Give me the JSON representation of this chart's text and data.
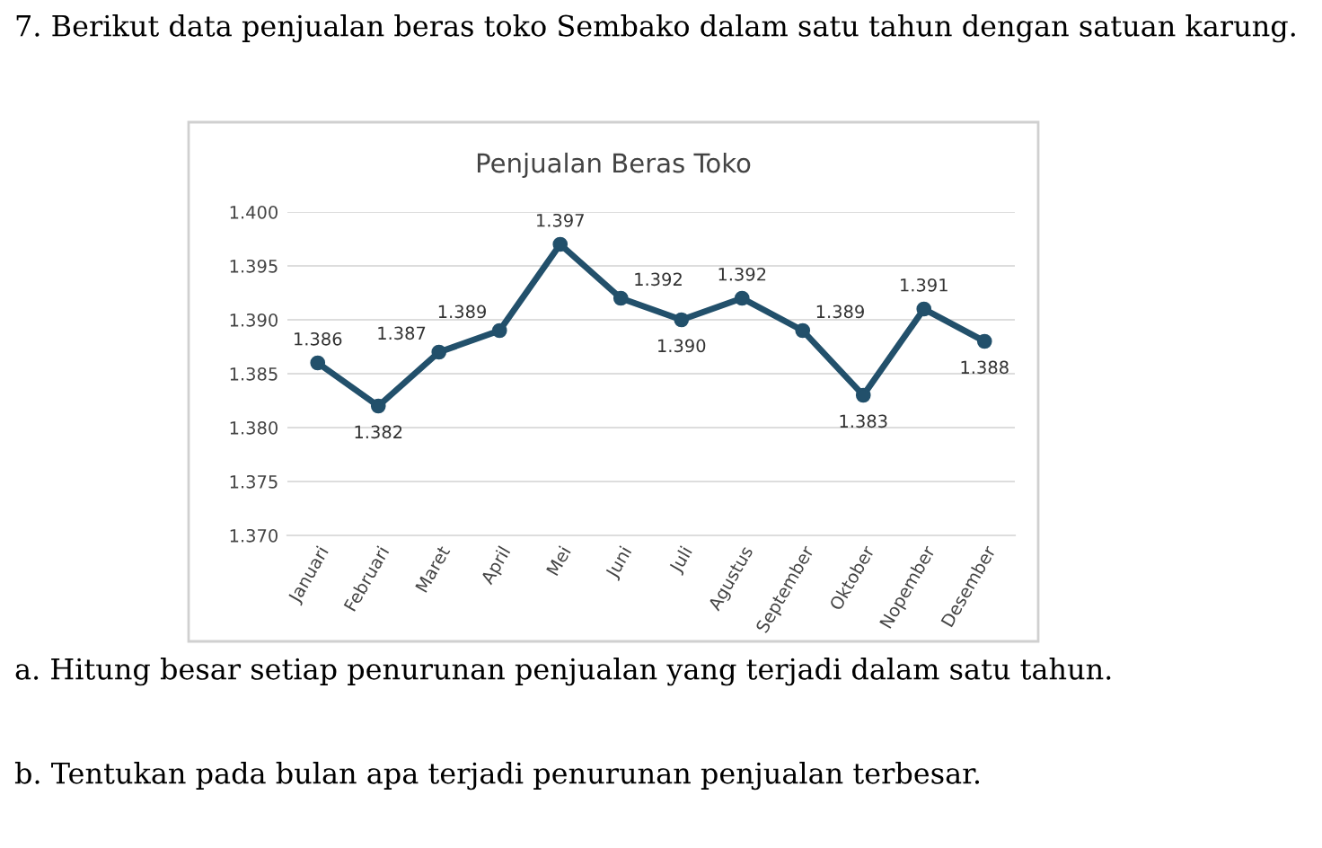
{
  "chart_data": {
    "type": "line",
    "title": "Penjualan Beras Toko",
    "categories": [
      "Januari",
      "Februari",
      "Maret",
      "April",
      "Mei",
      "Juni",
      "Juli",
      "Agustus",
      "September",
      "Oktober",
      "Nopember",
      "Desember"
    ],
    "series": [
      {
        "color": "#22506b",
        "values": [
          1386,
          1382,
          1387,
          1389,
          1397,
          1392,
          1390,
          1392,
          1389,
          1383,
          1391,
          1388
        ],
        "value_labels": [
          "1.386",
          "1.382",
          "1.387",
          "1.389",
          "1.397",
          "1.392",
          "1.390",
          "1.392",
          "1.389",
          "1.383",
          "1.391",
          "1.388"
        ]
      }
    ],
    "ylim": [
      1370,
      1400
    ],
    "yticks": [
      {
        "value": 1370,
        "label": "1.370"
      },
      {
        "value": 1375,
        "label": "1.375"
      },
      {
        "value": 1380,
        "label": "1.380"
      },
      {
        "value": 1385,
        "label": "1.385"
      },
      {
        "value": 1390,
        "label": "1.390"
      },
      {
        "value": 1395,
        "label": "1.395"
      },
      {
        "value": 1400,
        "label": "1.400"
      }
    ],
    "grid": "y",
    "marker": "circle",
    "line_style": "solid",
    "legend": false,
    "annotations": [
      "7. Berikut data penjualan beras toko Sembako dalam satu tahun dengan satuan karung.",
      "a. Hitung besar setiap penurunan penjualan yang terjadi dalam satu tahun.",
      "b. Tentukan pada bulan apa terjadi penurunan penjualan terbesar."
    ]
  }
}
